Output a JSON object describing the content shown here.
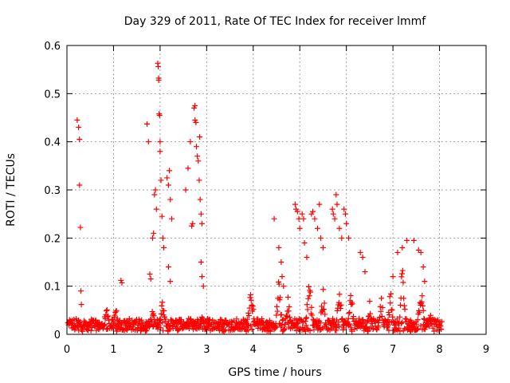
{
  "chart_data": {
    "type": "scatter",
    "title": "Day 329 of 2011, Rate Of TEC Index for receiver lmmf",
    "xlabel": "GPS time / hours",
    "ylabel": "ROTI / TECUs",
    "xlim": [
      0,
      9
    ],
    "ylim": [
      0,
      0.6
    ],
    "xticks": [
      0,
      1,
      2,
      3,
      4,
      5,
      6,
      7,
      8,
      9
    ],
    "xtick_labels": [
      "0",
      "1",
      "2",
      "3",
      "4",
      "5",
      "6",
      "7",
      "8",
      "9"
    ],
    "yticks": [
      0,
      0.1,
      0.2,
      0.3,
      0.4,
      0.5,
      0.6
    ],
    "ytick_labels": [
      "0",
      "0.1",
      "0.2",
      "0.3",
      "0.4",
      "0.5",
      "0.6"
    ],
    "grid": true,
    "legend": "none",
    "marker": "plus",
    "color": "#ff0000",
    "series": [
      {
        "values": [
          [
            0.22,
            0.445
          ],
          [
            0.25,
            0.43
          ],
          [
            0.27,
            0.405
          ],
          [
            0.27,
            0.31
          ],
          [
            0.29,
            0.222
          ],
          [
            0.3,
            0.09
          ],
          [
            0.31,
            0.062
          ],
          [
            1.16,
            0.112
          ],
          [
            1.18,
            0.107
          ],
          [
            1.72,
            0.437
          ],
          [
            1.75,
            0.4
          ],
          [
            1.78,
            0.125
          ],
          [
            1.8,
            0.115
          ],
          [
            1.84,
            0.2
          ],
          [
            1.86,
            0.21
          ],
          [
            1.88,
            0.29
          ],
          [
            1.9,
            0.3
          ],
          [
            1.92,
            0.26
          ],
          [
            1.95,
            0.563
          ],
          [
            1.96,
            0.556
          ],
          [
            1.97,
            0.532
          ],
          [
            1.97,
            0.528
          ],
          [
            1.98,
            0.458
          ],
          [
            1.99,
            0.455
          ],
          [
            2.0,
            0.4
          ],
          [
            2.0,
            0.38
          ],
          [
            2.02,
            0.32
          ],
          [
            2.04,
            0.245
          ],
          [
            2.06,
            0.2
          ],
          [
            2.08,
            0.18
          ],
          [
            2.15,
            0.325
          ],
          [
            2.18,
            0.31
          ],
          [
            2.2,
            0.34
          ],
          [
            2.22,
            0.28
          ],
          [
            2.25,
            0.24
          ],
          [
            2.18,
            0.14
          ],
          [
            2.22,
            0.11
          ],
          [
            2.55,
            0.3
          ],
          [
            2.6,
            0.345
          ],
          [
            2.65,
            0.4
          ],
          [
            2.68,
            0.225
          ],
          [
            2.7,
            0.23
          ],
          [
            2.73,
            0.47
          ],
          [
            2.75,
            0.475
          ],
          [
            2.75,
            0.445
          ],
          [
            2.77,
            0.44
          ],
          [
            2.78,
            0.39
          ],
          [
            2.8,
            0.37
          ],
          [
            2.82,
            0.36
          ],
          [
            2.84,
            0.32
          ],
          [
            2.86,
            0.28
          ],
          [
            2.88,
            0.25
          ],
          [
            2.85,
            0.41
          ],
          [
            2.9,
            0.23
          ],
          [
            2.88,
            0.15
          ],
          [
            2.9,
            0.12
          ],
          [
            2.93,
            0.1
          ],
          [
            4.45,
            0.24
          ],
          [
            4.55,
            0.18
          ],
          [
            4.6,
            0.15
          ],
          [
            4.62,
            0.12
          ],
          [
            4.65,
            0.1
          ],
          [
            4.9,
            0.27
          ],
          [
            4.92,
            0.26
          ],
          [
            4.95,
            0.255
          ],
          [
            4.98,
            0.24
          ],
          [
            5.0,
            0.22
          ],
          [
            5.05,
            0.25
          ],
          [
            5.08,
            0.24
          ],
          [
            5.1,
            0.19
          ],
          [
            5.15,
            0.16
          ],
          [
            5.25,
            0.25
          ],
          [
            5.28,
            0.255
          ],
          [
            5.32,
            0.24
          ],
          [
            5.38,
            0.22
          ],
          [
            5.42,
            0.27
          ],
          [
            5.45,
            0.2
          ],
          [
            5.5,
            0.18
          ],
          [
            5.7,
            0.26
          ],
          [
            5.72,
            0.25
          ],
          [
            5.75,
            0.24
          ],
          [
            5.78,
            0.29
          ],
          [
            5.8,
            0.27
          ],
          [
            5.85,
            0.22
          ],
          [
            5.9,
            0.2
          ],
          [
            5.95,
            0.26
          ],
          [
            5.98,
            0.25
          ],
          [
            6.0,
            0.23
          ],
          [
            6.05,
            0.2
          ],
          [
            6.3,
            0.17
          ],
          [
            6.35,
            0.16
          ],
          [
            6.4,
            0.13
          ],
          [
            7.0,
            0.12
          ],
          [
            7.1,
            0.17
          ],
          [
            7.2,
            0.18
          ],
          [
            7.3,
            0.195
          ],
          [
            7.45,
            0.195
          ],
          [
            7.55,
            0.175
          ],
          [
            7.6,
            0.17
          ],
          [
            7.65,
            0.14
          ],
          [
            7.68,
            0.11
          ]
        ]
      }
    ]
  }
}
